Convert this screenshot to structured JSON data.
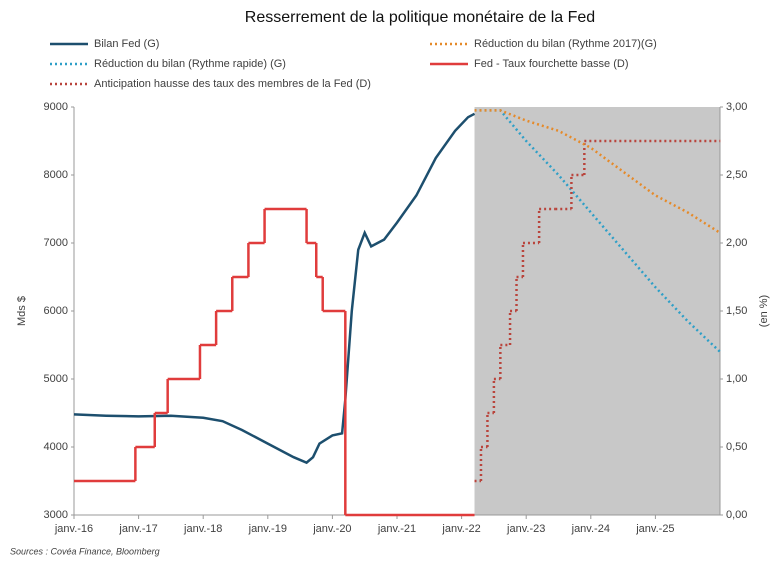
{
  "chart_data": {
    "type": "line",
    "title": "Resserrement de la politique monétaire de la Fed",
    "ylabel": "Mds $",
    "y2label": "(en %)",
    "source": "Sources : Covéa Finance, Bloomberg",
    "xlim": [
      2016,
      2026
    ],
    "xticks": [
      {
        "value": 2016,
        "label": "janv.-16"
      },
      {
        "value": 2017,
        "label": "janv.-17"
      },
      {
        "value": 2018,
        "label": "janv.-18"
      },
      {
        "value": 2019,
        "label": "janv.-19"
      },
      {
        "value": 2020,
        "label": "janv.-20"
      },
      {
        "value": 2021,
        "label": "janv.-21"
      },
      {
        "value": 2022,
        "label": "janv.-22"
      },
      {
        "value": 2023,
        "label": "janv.-23"
      },
      {
        "value": 2024,
        "label": "janv.-24"
      },
      {
        "value": 2025,
        "label": "janv.-25"
      }
    ],
    "ylim": [
      3000,
      9000
    ],
    "yticks": [
      3000,
      4000,
      5000,
      6000,
      7000,
      8000,
      9000
    ],
    "y2lim": [
      0,
      3
    ],
    "y2ticks": [
      {
        "value": 0,
        "label": "0,00"
      },
      {
        "value": 0.5,
        "label": "0,50"
      },
      {
        "value": 1,
        "label": "1,00"
      },
      {
        "value": 1.5,
        "label": "1,50"
      },
      {
        "value": 2,
        "label": "2,00"
      },
      {
        "value": 2.5,
        "label": "2,50"
      },
      {
        "value": 3,
        "label": "3,00"
      }
    ],
    "shaded_xrange": [
      2022.2,
      2026
    ],
    "shade_color": "#c8c8c8",
    "series": [
      {
        "name": "Bilan Fed (G)",
        "color": "#1d4f6e",
        "dash": false,
        "x": [
          2016,
          2016.5,
          2017,
          2017.5,
          2018,
          2018.3,
          2018.6,
          2019,
          2019.4,
          2019.6,
          2019.7,
          2019.8,
          2020,
          2020.15,
          2020.2,
          2020.3,
          2020.4,
          2020.5,
          2020.6,
          2020.8,
          2021,
          2021.3,
          2021.6,
          2021.9,
          2022.1,
          2022.2
        ],
        "values": [
          4480,
          4460,
          4450,
          4460,
          4430,
          4380,
          4250,
          4050,
          3850,
          3770,
          3850,
          4050,
          4170,
          4200,
          4700,
          6000,
          6900,
          7150,
          6950,
          7050,
          7300,
          7700,
          8250,
          8650,
          8850,
          8900
        ]
      },
      {
        "name": "Réduction du bilan (Rythme rapide) (G)",
        "color": "#2e9fc7",
        "dash": true,
        "x": [
          2022.2,
          2022.6,
          2023,
          2023.5,
          2024,
          2024.5,
          2025,
          2025.5,
          2026
        ],
        "values": [
          8950,
          8950,
          8500,
          8000,
          7450,
          6900,
          6350,
          5850,
          5400
        ]
      },
      {
        "name": "Anticipation hausse des taux des membres de la Fed (D)",
        "color": "#b9443c",
        "dash": true,
        "axis": "y2",
        "step": true,
        "x": [
          2022.2,
          2022.3,
          2022.4,
          2022.5,
          2022.6,
          2022.75,
          2022.85,
          2022.95,
          2023.2,
          2023.45,
          2023.7,
          2023.9,
          2026
        ],
        "values": [
          0.25,
          0.5,
          0.75,
          1,
          1.25,
          1.5,
          1.75,
          2,
          2.25,
          2.25,
          2.5,
          2.75,
          2.75
        ]
      },
      {
        "name": "Réduction du bilan (Rythme 2017)(G)",
        "color": "#e58a2a",
        "dash": true,
        "x": [
          2022.2,
          2022.6,
          2023,
          2023.5,
          2024,
          2024.5,
          2025,
          2025.5,
          2026
        ],
        "values": [
          8950,
          8950,
          8800,
          8650,
          8400,
          8050,
          7700,
          7450,
          7150
        ]
      },
      {
        "name": "Fed - Taux fourchette basse (D)",
        "color": "#e03c3c",
        "dash": false,
        "axis": "y2",
        "step": true,
        "x": [
          2016,
          2016.95,
          2017.25,
          2017.45,
          2017.95,
          2018.2,
          2018.45,
          2018.7,
          2018.95,
          2019.6,
          2019.75,
          2019.85,
          2020.2,
          2022.2
        ],
        "values": [
          0.25,
          0.5,
          0.75,
          1,
          1.25,
          1.5,
          1.75,
          2,
          2.25,
          2,
          1.75,
          1.5,
          0,
          0
        ]
      }
    ]
  }
}
